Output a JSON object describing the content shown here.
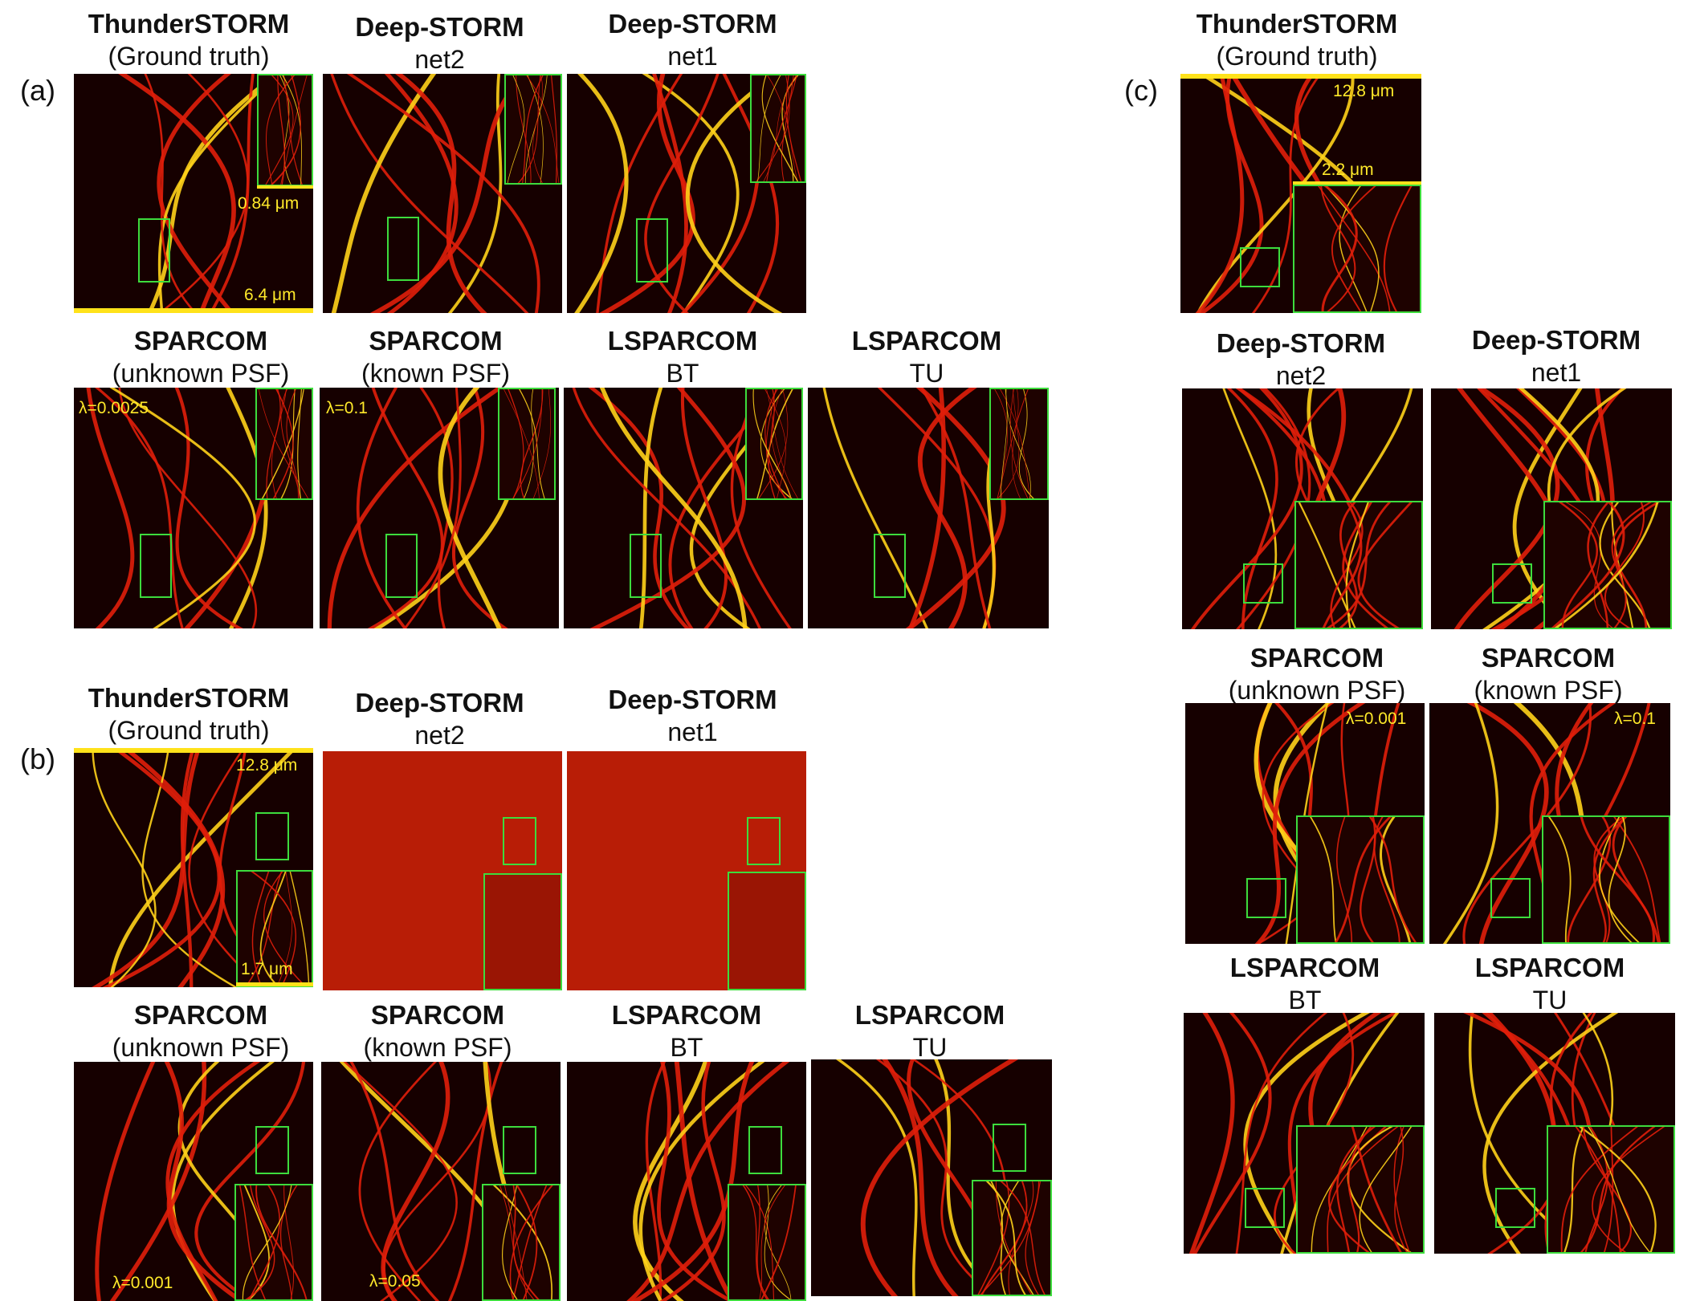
{
  "panel_labels": {
    "a": "(a)",
    "b": "(b)",
    "c": "(c)"
  },
  "a": {
    "row1": [
      {
        "title": "ThunderSTORM",
        "subtitle": "(Ground truth)",
        "inset_scale": "0.84 μm",
        "scale": "6.4 μm"
      },
      {
        "title": "Deep-STORM",
        "subtitle": "net2"
      },
      {
        "title": "Deep-STORM",
        "subtitle": "net1"
      }
    ],
    "row2": [
      {
        "title": "SPARCOM",
        "subtitle": "(unknown PSF)",
        "lambda": "λ=0.0025"
      },
      {
        "title": "SPARCOM",
        "subtitle": "(known PSF)",
        "lambda": "λ=0.1"
      },
      {
        "title": "LSPARCOM",
        "subtitle": "BT"
      },
      {
        "title": "LSPARCOM",
        "subtitle": "TU"
      }
    ]
  },
  "b": {
    "row1": [
      {
        "title": "ThunderSTORM",
        "subtitle": "(Ground truth)",
        "scale": "12.8 μm",
        "inset_scale": "1.7 μm"
      },
      {
        "title": "Deep-STORM",
        "subtitle": "net2"
      },
      {
        "title": "Deep-STORM",
        "subtitle": "net1"
      }
    ],
    "row2": [
      {
        "title": "SPARCOM",
        "subtitle": "(unknown PSF)",
        "lambda": "λ=0.001"
      },
      {
        "title": "SPARCOM",
        "subtitle": "(known PSF)",
        "lambda": "λ=0.05"
      },
      {
        "title": "LSPARCOM",
        "subtitle": "BT"
      },
      {
        "title": "LSPARCOM",
        "subtitle": "TU"
      }
    ]
  },
  "c": {
    "gt": {
      "title": "ThunderSTORM",
      "subtitle": "(Ground truth)",
      "scale": "12.8 μm",
      "inset_scale": "2.2 μm"
    },
    "deep": [
      {
        "title": "Deep-STORM",
        "subtitle": "net2"
      },
      {
        "title": "Deep-STORM",
        "subtitle": "net1"
      }
    ],
    "sparcom": [
      {
        "title": "SPARCOM",
        "subtitle": "(unknown PSF)",
        "lambda": "λ=0.001"
      },
      {
        "title": "SPARCOM",
        "subtitle": "(known PSF)",
        "lambda": "λ=0.1"
      }
    ],
    "lsparcom": [
      {
        "title": "LSPARCOM",
        "subtitle": "BT"
      },
      {
        "title": "LSPARCOM",
        "subtitle": "TU"
      }
    ]
  },
  "colors": {
    "background": "#160000",
    "filament": "#e01e0a",
    "highlight": "#ffd21a",
    "roi": "#3ddc3d",
    "annotation": "#ffe92a"
  }
}
